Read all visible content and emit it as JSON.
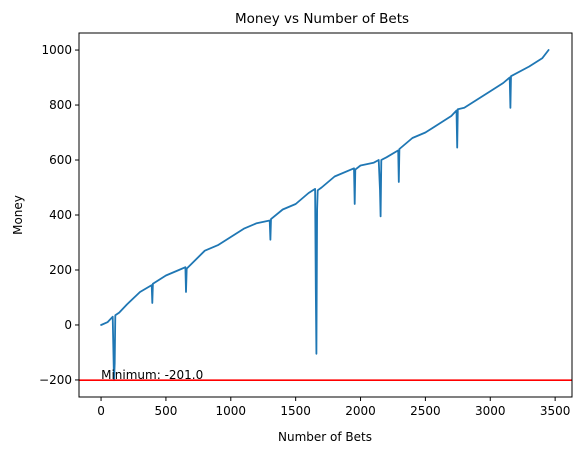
{
  "chart_data": {
    "type": "line",
    "title": "Money vs Number of Bets",
    "xlabel": "Number of Bets",
    "ylabel": "Money",
    "xlim": [
      -170,
      3630
    ],
    "ylim": [
      -262,
      1062
    ],
    "xticks": [
      0,
      500,
      1000,
      1500,
      2000,
      2500,
      3000,
      3500
    ],
    "xtick_labels": [
      "0",
      "500",
      "1000",
      "1500",
      "2000",
      "2500",
      "3000",
      "3500"
    ],
    "yticks": [
      -200,
      0,
      200,
      400,
      600,
      800,
      1000
    ],
    "ytick_labels": [
      "−200",
      "0",
      "200",
      "400",
      "600",
      "800",
      "1000"
    ],
    "grid": false,
    "series": [
      {
        "color": "#1f77b4",
        "x": [
          0,
          50,
          90,
          100,
          105,
          110,
          140,
          200,
          300,
          390,
          395,
          400,
          500,
          600,
          650,
          655,
          660,
          800,
          900,
          1000,
          1100,
          1200,
          1300,
          1305,
          1310,
          1400,
          1500,
          1600,
          1650,
          1655,
          1660,
          1665,
          1670,
          1700,
          1800,
          1950,
          1955,
          1960,
          2000,
          2100,
          2140,
          2150,
          2155,
          2160,
          2200,
          2290,
          2295,
          2300,
          2400,
          2500,
          2600,
          2700,
          2740,
          2745,
          2750,
          2800,
          2900,
          3000,
          3100,
          3150,
          3155,
          3160,
          3300,
          3400,
          3450
        ],
        "y": [
          0,
          10,
          30,
          -201,
          -140,
          35,
          45,
          75,
          120,
          145,
          80,
          150,
          180,
          200,
          210,
          120,
          205,
          270,
          290,
          320,
          350,
          370,
          380,
          310,
          385,
          420,
          440,
          480,
          495,
          130,
          -105,
          420,
          490,
          500,
          540,
          570,
          440,
          565,
          580,
          590,
          600,
          490,
          395,
          600,
          610,
          635,
          520,
          640,
          680,
          700,
          730,
          760,
          780,
          645,
          785,
          790,
          820,
          850,
          880,
          900,
          790,
          905,
          940,
          970,
          1000
        ]
      }
    ],
    "hlines": [
      {
        "y": -201,
        "color": "#ff0000"
      }
    ],
    "annotations": [
      {
        "text": "Minimum: -201.0",
        "x": 0,
        "y": -201
      }
    ]
  }
}
